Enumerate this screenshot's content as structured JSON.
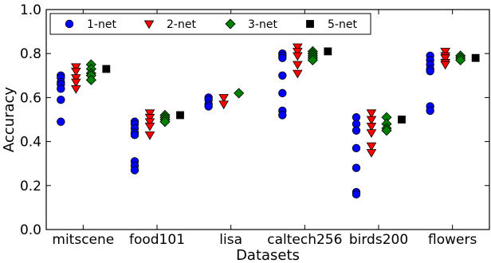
{
  "chart_data": {
    "type": "scatter",
    "xlabel": "Datasets",
    "ylabel": "Accuracy",
    "ylim": [
      0.0,
      1.0
    ],
    "yticks": [
      "0.0",
      "0.2",
      "0.4",
      "0.6",
      "0.8",
      "1.0"
    ],
    "categories": [
      "mitscene",
      "food101",
      "lisa",
      "caltech256",
      "birds200",
      "flowers"
    ],
    "legend_position": "top-left",
    "series": [
      {
        "name": "1-net",
        "marker": "circle",
        "color": "#0000ff",
        "values": [
          [
            0.7,
            0.69,
            0.67,
            0.66,
            0.64,
            0.59,
            0.49
          ],
          [
            0.49,
            0.48,
            0.46,
            0.44,
            0.43,
            0.31,
            0.29,
            0.27
          ],
          [
            0.6,
            0.59,
            0.57,
            0.56
          ],
          [
            0.8,
            0.79,
            0.78,
            0.7,
            0.62,
            0.54,
            0.52
          ],
          [
            0.51,
            0.48,
            0.45,
            0.37,
            0.28,
            0.17,
            0.16
          ],
          [
            0.79,
            0.77,
            0.75,
            0.73,
            0.72,
            0.56,
            0.54
          ]
        ]
      },
      {
        "name": "2-net",
        "marker": "triangle-down",
        "color": "#ff0000",
        "values": [
          [
            0.74,
            0.72,
            0.69,
            0.67,
            0.64
          ],
          [
            0.53,
            0.51,
            0.49,
            0.47,
            0.43
          ],
          [
            0.6,
            0.57
          ],
          [
            0.83,
            0.81,
            0.79,
            0.75,
            0.71
          ],
          [
            0.53,
            0.5,
            0.47,
            0.44,
            0.38,
            0.35
          ],
          [
            0.81,
            0.79,
            0.78,
            0.76,
            0.75
          ]
        ]
      },
      {
        "name": "3-net",
        "marker": "diamond",
        "color": "#008000",
        "values": [
          [
            0.75,
            0.73,
            0.71,
            0.7,
            0.68
          ],
          [
            0.52,
            0.51,
            0.5,
            0.49
          ],
          [
            0.62
          ],
          [
            0.81,
            0.8,
            0.79,
            0.78,
            0.77
          ],
          [
            0.51,
            0.48,
            0.46,
            0.45
          ],
          [
            0.79,
            0.78,
            0.77
          ]
        ]
      },
      {
        "name": "5-net",
        "marker": "square",
        "color": "#000000",
        "values": [
          [
            0.73
          ],
          [
            0.52
          ],
          [],
          [
            0.81
          ],
          [
            0.5
          ],
          [
            0.78
          ]
        ]
      }
    ]
  }
}
